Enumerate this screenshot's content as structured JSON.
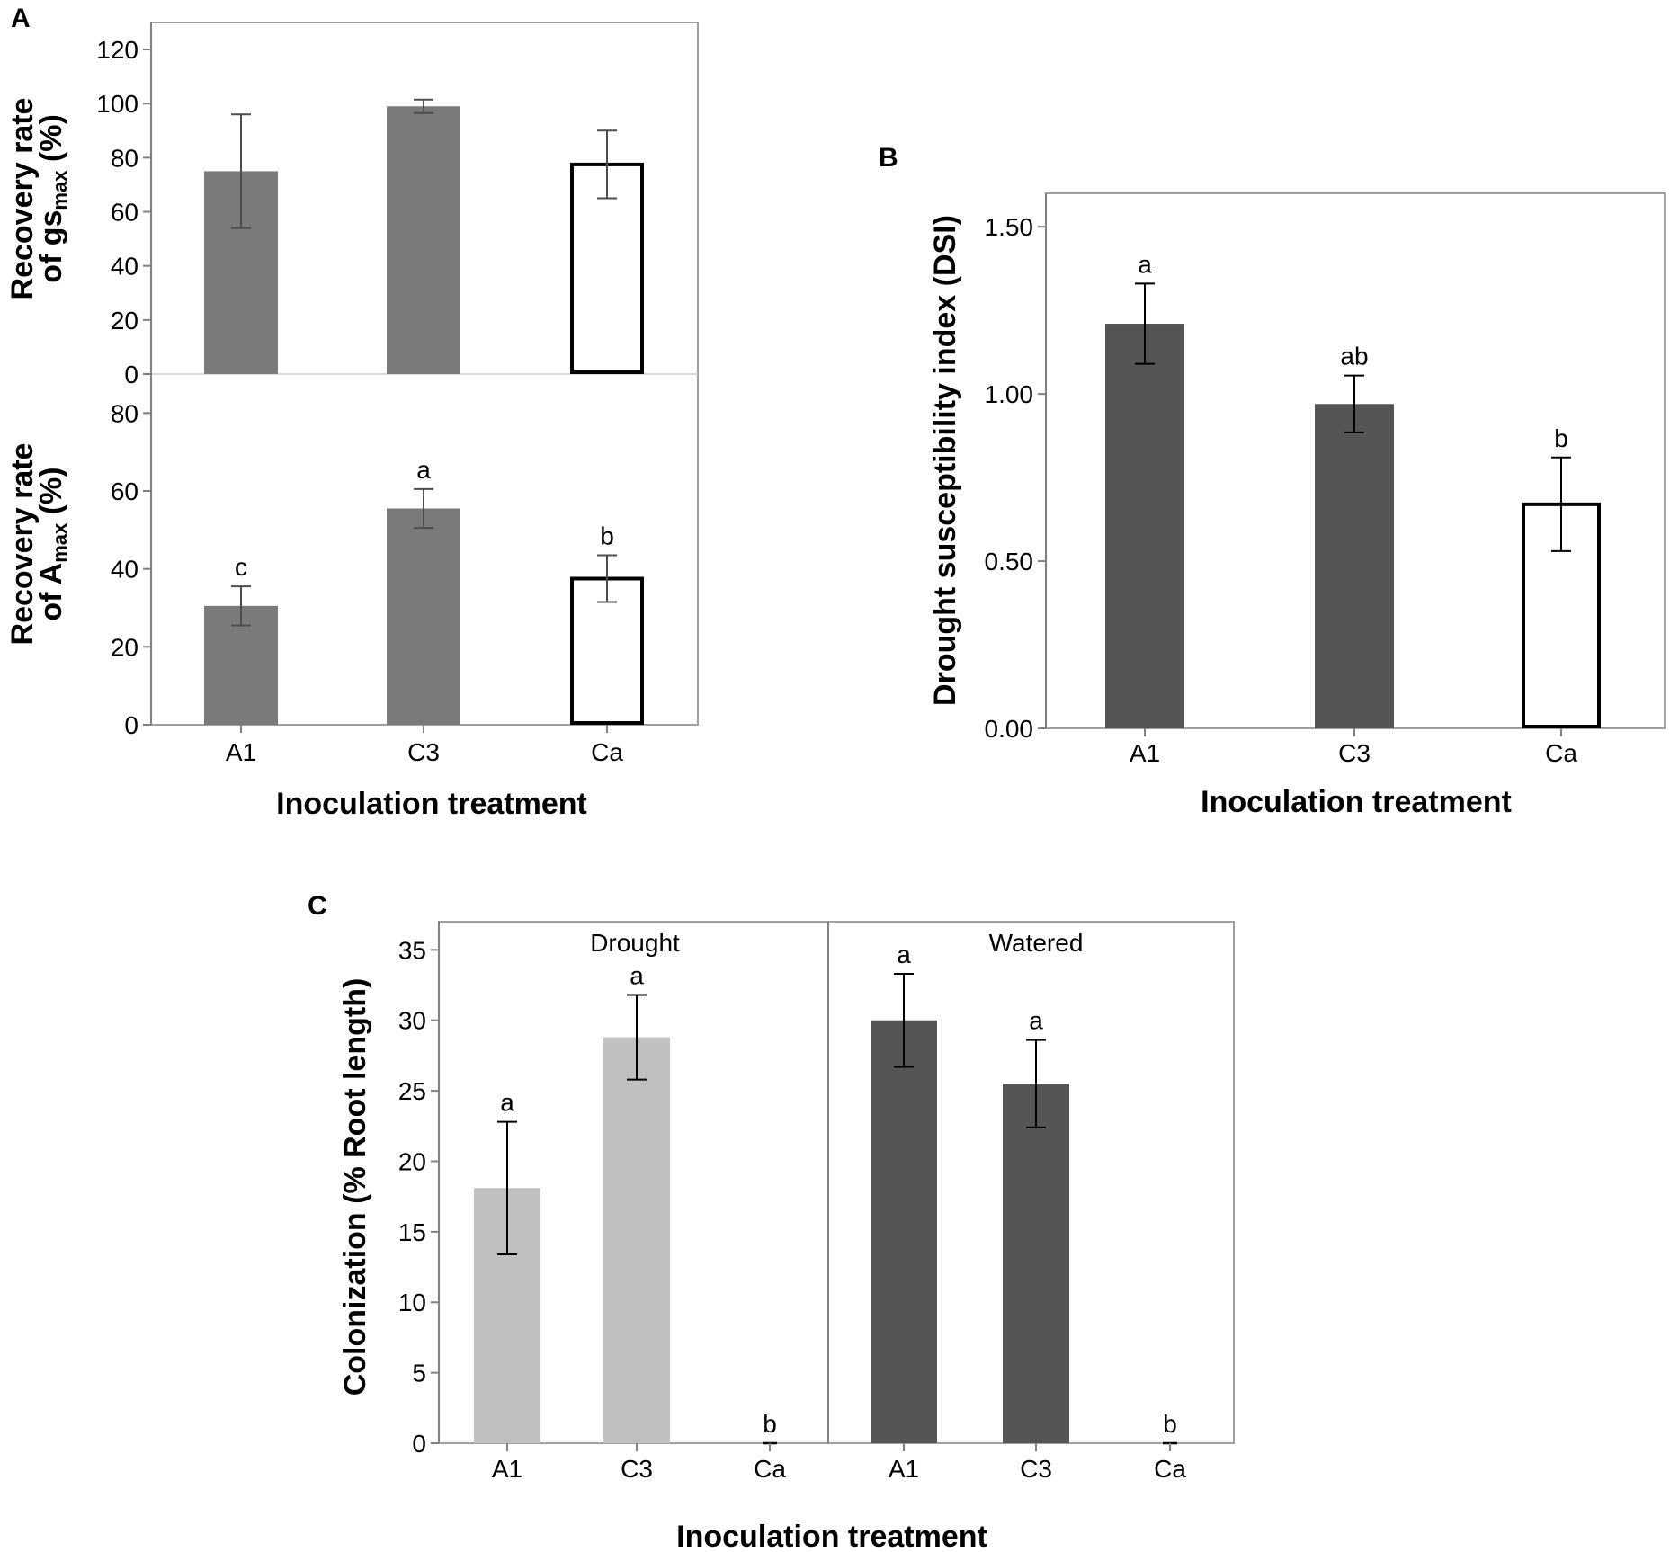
{
  "colors": {
    "bar_grey": "#7a7a7a",
    "bar_dark": "#555555",
    "bar_light": "#c0c0c0",
    "bar_open_fill": "#ffffff",
    "bar_open_stroke": "#000000",
    "err_grey": "#4d4d4d",
    "err_black": "#000000"
  },
  "chart_data": [
    {
      "id": "A_top",
      "panel_label": "A",
      "type": "bar",
      "ylabel_lines": [
        "Recovery rate",
        "of gs"
      ],
      "ylabel_sub": "max",
      "ylabel_suffix": " (%)",
      "categories": [
        "A1",
        "C3",
        "Ca"
      ],
      "values": [
        75,
        99,
        77.5
      ],
      "errors": [
        21,
        2.5,
        12.5
      ],
      "sig_letters": [
        "",
        "",
        ""
      ],
      "bar_styles": [
        "grey",
        "grey",
        "open"
      ],
      "ylim": [
        0,
        130
      ],
      "yticks": [
        "0",
        "20",
        "40",
        "60",
        "80",
        "100",
        "120"
      ],
      "ytick_values": [
        0,
        20,
        40,
        60,
        80,
        100,
        120
      ]
    },
    {
      "id": "A_bottom",
      "panel_label": "",
      "type": "bar",
      "ylabel_lines": [
        "Recovery rate",
        "of A"
      ],
      "ylabel_sub": "max",
      "ylabel_suffix": " (%)",
      "categories": [
        "A1",
        "C3",
        "Ca"
      ],
      "values": [
        30.5,
        55.5,
        37.5
      ],
      "errors": [
        5,
        5,
        6
      ],
      "sig_letters": [
        "c",
        "a",
        "b"
      ],
      "bar_styles": [
        "grey",
        "grey",
        "open"
      ],
      "ylim": [
        0,
        90
      ],
      "yticks": [
        "0",
        "20",
        "40",
        "60",
        "80"
      ],
      "ytick_values": [
        0,
        20,
        40,
        60,
        80
      ],
      "xlabel": "Inoculation treatment"
    },
    {
      "id": "B",
      "panel_label": "B",
      "type": "bar",
      "ylabel": "Drought susceptibility index (DSI)",
      "categories": [
        "A1",
        "C3",
        "Ca"
      ],
      "values": [
        1.21,
        0.97,
        0.67
      ],
      "errors": [
        0.12,
        0.085,
        0.14
      ],
      "sig_letters": [
        "a",
        "ab",
        "b"
      ],
      "bar_styles": [
        "dark",
        "dark",
        "open"
      ],
      "ylim": [
        0,
        1.6
      ],
      "yticks": [
        "0.00",
        "0.50",
        "1.00",
        "1.50"
      ],
      "ytick_values": [
        0,
        0.5,
        1.0,
        1.5
      ],
      "xlabel": "Inoculation treatment"
    },
    {
      "id": "C",
      "panel_label": "C",
      "type": "bar",
      "ylabel": "Colonization (% Root length)",
      "facets": [
        {
          "name": "Drought",
          "categories": [
            "A1",
            "C3",
            "Ca"
          ],
          "values": [
            18.1,
            28.8,
            0
          ],
          "errors": [
            4.7,
            3.0,
            0
          ],
          "sig_letters": [
            "a",
            "a",
            "b"
          ],
          "bar_style": "light"
        },
        {
          "name": "Watered",
          "categories": [
            "A1",
            "C3",
            "Ca"
          ],
          "values": [
            30.0,
            25.5,
            0
          ],
          "errors": [
            3.3,
            3.1,
            0
          ],
          "sig_letters": [
            "a",
            "a",
            "b"
          ],
          "bar_style": "dark"
        }
      ],
      "ylim": [
        0,
        37
      ],
      "yticks": [
        "0",
        "5",
        "10",
        "15",
        "20",
        "25",
        "30",
        "35"
      ],
      "ytick_values": [
        0,
        5,
        10,
        15,
        20,
        25,
        30,
        35
      ],
      "xlabel": "Inoculation treatment"
    }
  ]
}
